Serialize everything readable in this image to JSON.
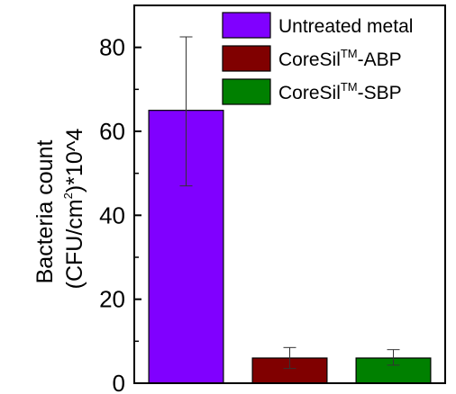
{
  "chart_data": {
    "type": "bar",
    "categories": [
      "Untreated metal",
      "CoreSil™-ABP",
      "CoreSil™-SBP"
    ],
    "series": [
      {
        "name": "Bacteria count",
        "values": [
          65,
          6,
          6
        ],
        "error_low": [
          47,
          3.5,
          4.3
        ],
        "error_high": [
          82.5,
          8.5,
          8
        ],
        "colors": [
          "#8000ff",
          "#800000",
          "#008000"
        ]
      }
    ],
    "ylabel_line1": "Bacteria count",
    "ylabel_line2_pre": "(CFU/cm",
    "ylabel_line2_sup": "2",
    "ylabel_line2_post": ")*10^4",
    "ylim": [
      0,
      90
    ],
    "yticks": [
      0,
      20,
      40,
      60,
      80
    ],
    "grid": false,
    "legend_position": "top-right",
    "legend": [
      {
        "label": "Untreated metal",
        "sup": "",
        "suffix": "",
        "color": "#8000ff"
      },
      {
        "label": "CoreSil",
        "sup": "TM",
        "suffix": "-ABP",
        "color": "#800000"
      },
      {
        "label": "CoreSil",
        "sup": "TM",
        "suffix": "-SBP",
        "color": "#008000"
      }
    ]
  }
}
